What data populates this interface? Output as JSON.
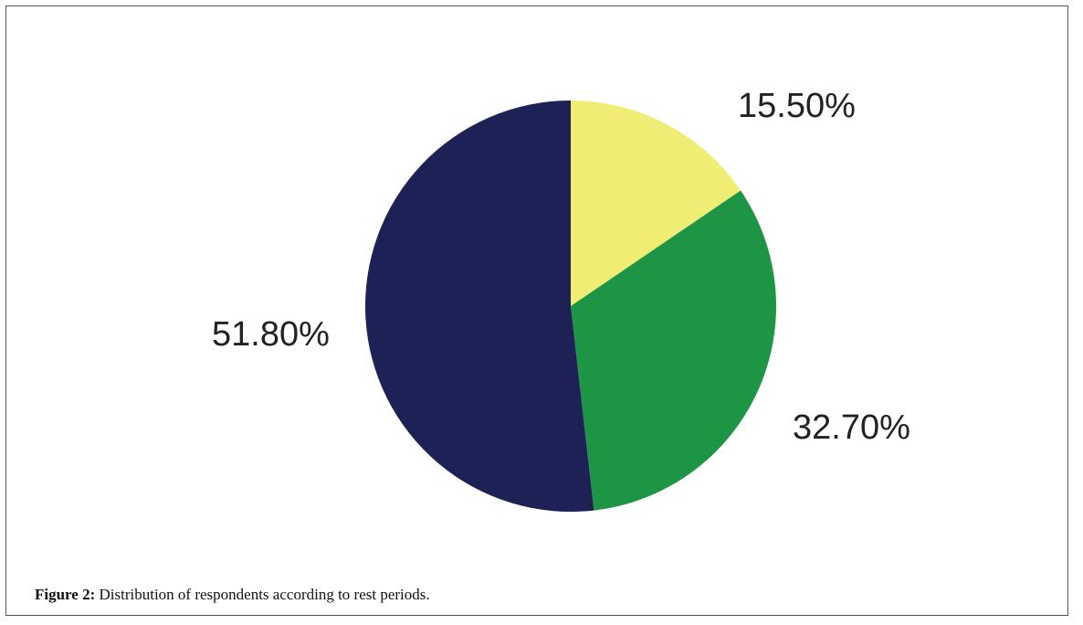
{
  "chart_data": {
    "type": "pie",
    "series": [
      {
        "color": "#f0ed74",
        "values": [
          15.5
        ],
        "value_labels": [
          "15.50%"
        ]
      },
      {
        "color": "#1e9545",
        "values": [
          32.7
        ],
        "value_labels": [
          "32.70%"
        ]
      },
      {
        "color": "#1e2156",
        "values": [
          51.8
        ],
        "value_labels": [
          "51.80%"
        ]
      }
    ]
  },
  "figure": {
    "label": "Figure 2:",
    "caption": "Distribution of respondents according to rest periods."
  }
}
